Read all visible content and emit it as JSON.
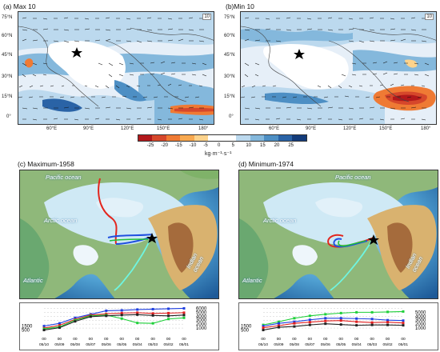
{
  "panels": {
    "a": {
      "label": "(a) Max 10",
      "legend_value": "10"
    },
    "b": {
      "label": "(b)Min 10",
      "legend_value": "10"
    },
    "c": {
      "label": "(c) Maximum-1958"
    },
    "d": {
      "label": "(d) Minimum-1974"
    }
  },
  "lat_ticks": [
    "75°N",
    "60°N",
    "45°N",
    "30°N",
    "15°N",
    "0°"
  ],
  "lon_ticks": [
    "60°E",
    "90°E",
    "120°E",
    "150°E",
    "180°"
  ],
  "colorbar": {
    "ticks": [
      "-25",
      "-20",
      "-15",
      "-10",
      "-5",
      "0",
      "5",
      "10",
      "15",
      "20",
      "25"
    ],
    "unit": "kg·m⁻¹·s⁻¹",
    "colors": [
      "#b2181b",
      "#d6472b",
      "#ef7a34",
      "#f8a950",
      "#fdd38c",
      "#ffffff",
      "#ffffff",
      "#bcd9ee",
      "#84b8dc",
      "#4d8fc4",
      "#2a63a6",
      "#133b7a"
    ]
  },
  "map_labels": {
    "pacific": "Pacific ocean",
    "arctic": "Arctic ocean",
    "atlantic": "Atlantic",
    "indian": "Indian ocean"
  },
  "timeseries": {
    "c": {
      "dates": [
        "05/10",
        "05/09",
        "05/08",
        "05/07",
        "05/06",
        "05/05",
        "05/04",
        "05/03",
        "05/02",
        "05/01"
      ],
      "hour_label": "00",
      "left_ticks": [
        "1500",
        "500"
      ],
      "right_ticks": [
        "6000",
        "5000",
        "4000",
        "3000",
        "2000",
        "1000"
      ],
      "series": [
        {
          "color": "#1f3fe0",
          "values": [
            1500,
            2200,
            3600,
            4500,
            5400,
            5500,
            5700,
            5800,
            5900,
            6000
          ]
        },
        {
          "color": "#e01f1f",
          "values": [
            1000,
            1700,
            3200,
            4300,
            4600,
            4800,
            4900,
            4700,
            4800,
            4900
          ]
        },
        {
          "color": "#1fd03a",
          "values": [
            800,
            1300,
            3000,
            4100,
            4300,
            3400,
            2300,
            2200,
            3300,
            3600
          ]
        },
        {
          "color": "#222222",
          "values": [
            500,
            1100,
            2700,
            3900,
            4100,
            4300,
            4400,
            4200,
            4100,
            4300
          ]
        }
      ]
    },
    "d": {
      "dates": [
        "05/10",
        "05/09",
        "05/08",
        "05/07",
        "05/06",
        "05/05",
        "05/04",
        "05/03",
        "05/02",
        "05/01"
      ],
      "hour_label": "00",
      "left_ticks": [
        "1500",
        "500"
      ],
      "right_ticks": [
        "5000",
        "4000",
        "3000",
        "2000",
        "1000"
      ],
      "series": [
        {
          "color": "#1fd03a",
          "values": [
            1800,
            2600,
            3500,
            4100,
            4500,
            4800,
            5000,
            5000,
            5100,
            5200
          ]
        },
        {
          "color": "#1f3fe0",
          "values": [
            1500,
            2200,
            2600,
            3100,
            3500,
            3500,
            3400,
            3300,
            3000,
            2900
          ]
        },
        {
          "color": "#e01f1f",
          "values": [
            1100,
            1600,
            2200,
            2500,
            2800,
            2900,
            2600,
            2400,
            2500,
            2300
          ]
        },
        {
          "color": "#222222",
          "values": [
            500,
            1200,
            1400,
            1800,
            2100,
            1900,
            1700,
            1800,
            1800,
            1700
          ]
        }
      ]
    }
  }
}
